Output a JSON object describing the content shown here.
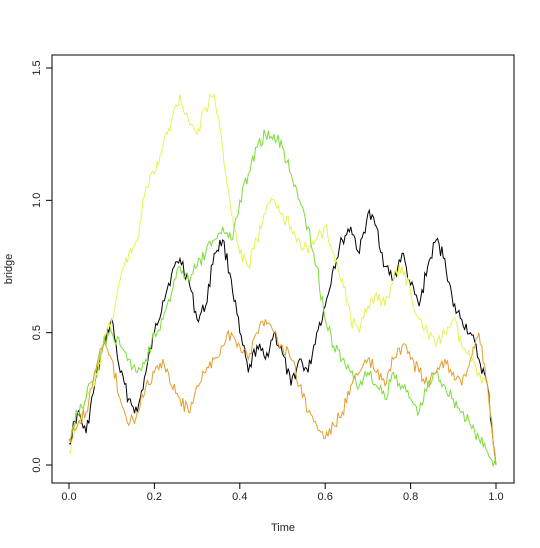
{
  "chart_data": {
    "type": "line",
    "xlabel": "Time",
    "ylabel": "bridge",
    "xlim": [
      0,
      1
    ],
    "ylim": [
      0,
      1.5
    ],
    "xticks": [
      0,
      0.2,
      0.4,
      0.6,
      0.8,
      1.0
    ],
    "xtick_labels": [
      "0.0",
      "0.2",
      "0.4",
      "0.6",
      "0.8",
      "1.0"
    ],
    "yticks": [
      0,
      0.5,
      1.0,
      1.5
    ],
    "ytick_labels": [
      "0.0",
      "0.5",
      "1.0",
      "1.5"
    ],
    "grid": false,
    "legend": "none",
    "series": [
      {
        "color": "#000000",
        "x": [
          0,
          0.02,
          0.04,
          0.06,
          0.08,
          0.1,
          0.12,
          0.14,
          0.16,
          0.18,
          0.2,
          0.22,
          0.24,
          0.26,
          0.28,
          0.3,
          0.32,
          0.34,
          0.36,
          0.38,
          0.4,
          0.42,
          0.44,
          0.46,
          0.48,
          0.5,
          0.52,
          0.54,
          0.56,
          0.58,
          0.6,
          0.62,
          0.64,
          0.66,
          0.68,
          0.7,
          0.72,
          0.74,
          0.76,
          0.78,
          0.8,
          0.82,
          0.84,
          0.86,
          0.88,
          0.9,
          0.92,
          0.94,
          0.96,
          0.98,
          1.0
        ],
        "y": [
          0.08,
          0.2,
          0.12,
          0.3,
          0.45,
          0.55,
          0.35,
          0.25,
          0.2,
          0.35,
          0.5,
          0.62,
          0.72,
          0.78,
          0.7,
          0.55,
          0.6,
          0.8,
          0.85,
          0.7,
          0.5,
          0.35,
          0.45,
          0.4,
          0.5,
          0.42,
          0.3,
          0.4,
          0.35,
          0.5,
          0.6,
          0.75,
          0.85,
          0.9,
          0.8,
          0.95,
          0.9,
          0.75,
          0.7,
          0.8,
          0.68,
          0.6,
          0.75,
          0.85,
          0.78,
          0.6,
          0.55,
          0.5,
          0.4,
          0.3,
          0.0
        ]
      },
      {
        "color": "#e8f255",
        "x": [
          0,
          0.02,
          0.04,
          0.06,
          0.08,
          0.1,
          0.12,
          0.14,
          0.16,
          0.18,
          0.2,
          0.22,
          0.24,
          0.26,
          0.28,
          0.3,
          0.32,
          0.34,
          0.36,
          0.38,
          0.4,
          0.42,
          0.44,
          0.46,
          0.48,
          0.5,
          0.52,
          0.54,
          0.56,
          0.58,
          0.6,
          0.62,
          0.64,
          0.66,
          0.68,
          0.7,
          0.72,
          0.74,
          0.76,
          0.78,
          0.8,
          0.82,
          0.84,
          0.86,
          0.88,
          0.9,
          0.92,
          0.94,
          0.96,
          0.98,
          1.0
        ],
        "y": [
          0.05,
          0.15,
          0.25,
          0.3,
          0.45,
          0.55,
          0.7,
          0.8,
          0.85,
          1.05,
          1.1,
          1.2,
          1.3,
          1.4,
          1.3,
          1.25,
          1.35,
          1.4,
          1.2,
          0.95,
          0.8,
          0.75,
          0.85,
          0.95,
          1.0,
          0.95,
          0.9,
          0.85,
          0.8,
          0.85,
          0.9,
          0.8,
          0.7,
          0.55,
          0.5,
          0.6,
          0.65,
          0.6,
          0.7,
          0.75,
          0.65,
          0.55,
          0.5,
          0.45,
          0.5,
          0.55,
          0.45,
          0.4,
          0.35,
          0.3,
          0.0
        ]
      },
      {
        "color": "#7ddc3a",
        "x": [
          0,
          0.02,
          0.04,
          0.06,
          0.08,
          0.1,
          0.12,
          0.14,
          0.16,
          0.18,
          0.2,
          0.22,
          0.24,
          0.26,
          0.28,
          0.3,
          0.32,
          0.34,
          0.36,
          0.38,
          0.4,
          0.42,
          0.44,
          0.46,
          0.48,
          0.5,
          0.52,
          0.54,
          0.56,
          0.58,
          0.6,
          0.62,
          0.64,
          0.66,
          0.68,
          0.7,
          0.72,
          0.74,
          0.76,
          0.78,
          0.8,
          0.82,
          0.84,
          0.86,
          0.88,
          0.9,
          0.92,
          0.94,
          0.96,
          0.98,
          1.0
        ],
        "y": [
          0.1,
          0.2,
          0.25,
          0.35,
          0.45,
          0.5,
          0.45,
          0.4,
          0.35,
          0.4,
          0.5,
          0.55,
          0.65,
          0.75,
          0.7,
          0.75,
          0.8,
          0.85,
          0.9,
          0.85,
          1.0,
          1.1,
          1.2,
          1.25,
          1.25,
          1.2,
          1.1,
          1.0,
          0.9,
          0.75,
          0.55,
          0.45,
          0.4,
          0.35,
          0.3,
          0.35,
          0.3,
          0.25,
          0.35,
          0.3,
          0.25,
          0.2,
          0.3,
          0.35,
          0.3,
          0.25,
          0.2,
          0.15,
          0.1,
          0.05,
          0.0
        ]
      },
      {
        "color": "#e0a030",
        "x": [
          0,
          0.02,
          0.04,
          0.06,
          0.08,
          0.1,
          0.12,
          0.14,
          0.16,
          0.18,
          0.2,
          0.22,
          0.24,
          0.26,
          0.28,
          0.3,
          0.32,
          0.34,
          0.36,
          0.38,
          0.4,
          0.42,
          0.44,
          0.46,
          0.48,
          0.5,
          0.52,
          0.54,
          0.56,
          0.58,
          0.6,
          0.62,
          0.64,
          0.66,
          0.68,
          0.7,
          0.72,
          0.74,
          0.76,
          0.78,
          0.8,
          0.82,
          0.84,
          0.86,
          0.88,
          0.9,
          0.92,
          0.94,
          0.96,
          0.98,
          1.0
        ],
        "y": [
          0.1,
          0.15,
          0.2,
          0.35,
          0.45,
          0.4,
          0.25,
          0.15,
          0.2,
          0.3,
          0.35,
          0.4,
          0.3,
          0.25,
          0.2,
          0.3,
          0.35,
          0.4,
          0.45,
          0.5,
          0.45,
          0.4,
          0.5,
          0.55,
          0.5,
          0.45,
          0.4,
          0.3,
          0.2,
          0.15,
          0.1,
          0.15,
          0.2,
          0.3,
          0.35,
          0.4,
          0.35,
          0.3,
          0.4,
          0.45,
          0.4,
          0.35,
          0.3,
          0.35,
          0.4,
          0.35,
          0.3,
          0.4,
          0.5,
          0.3,
          0.0
        ]
      }
    ]
  }
}
